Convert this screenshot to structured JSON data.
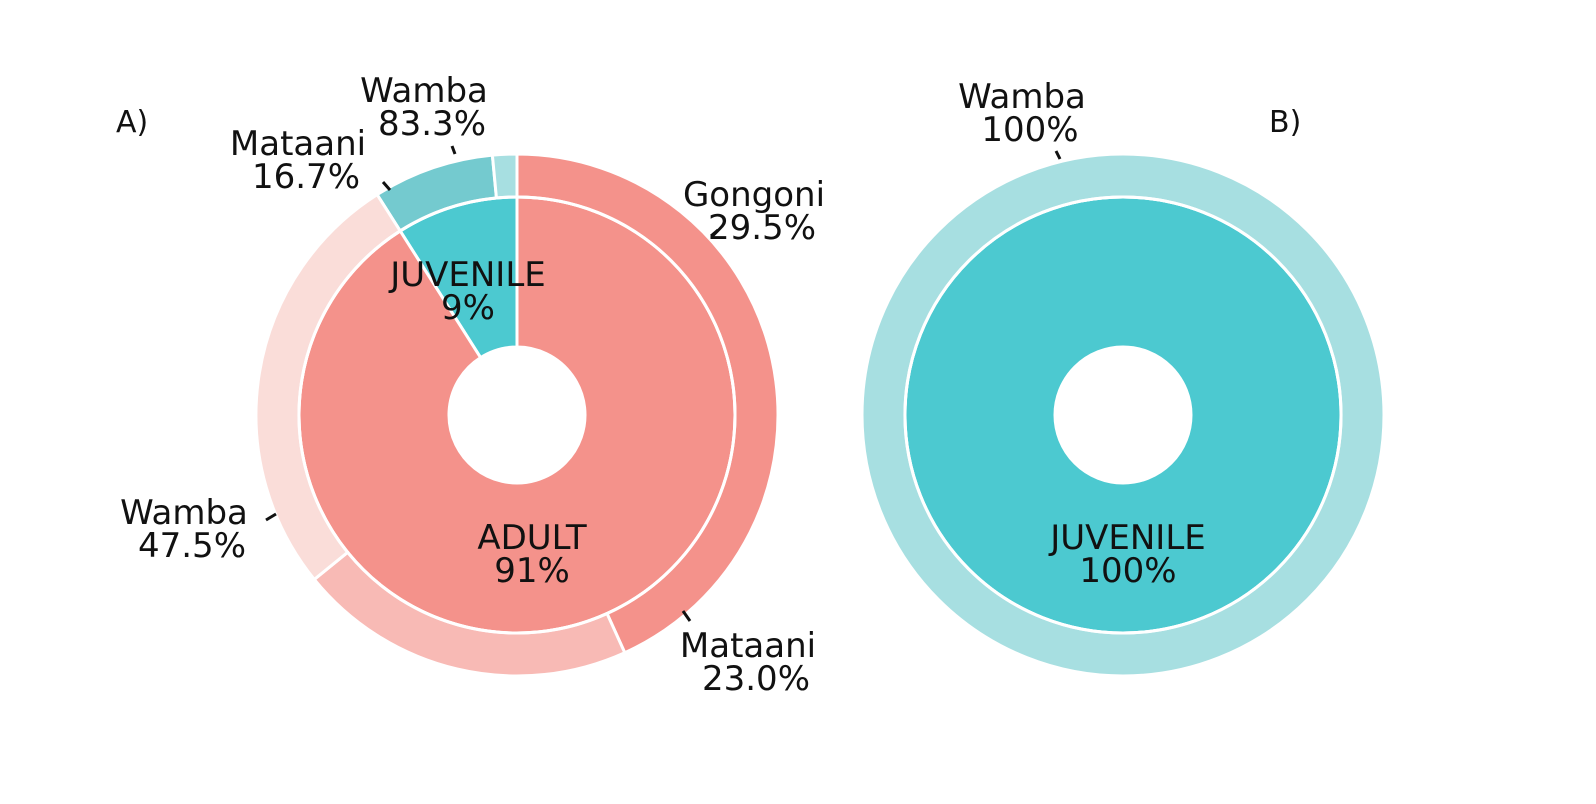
{
  "chart_data": [
    {
      "type": "pie",
      "panel_label": "A)",
      "inner": [
        {
          "label": "JUVENILE",
          "value": 9,
          "value_text": "9%",
          "color": "#4CC9D0"
        },
        {
          "label": "ADULT",
          "value": 91,
          "value_text": "91%",
          "color": "#F4928B"
        }
      ],
      "outer": [
        {
          "label": "Wamba",
          "value": 83.3,
          "value_text": "83.3%",
          "group": "JUVENILE",
          "color": "#74CACF"
        },
        {
          "label": "Mataani",
          "value": 16.7,
          "value_text": "16.7%",
          "group": "JUVENILE",
          "color": "#A7DFE1"
        },
        {
          "label": "Wamba",
          "value": 47.5,
          "value_text": "47.5%",
          "group": "ADULT",
          "color": "#F4928B"
        },
        {
          "label": "Mataani",
          "value": 23.0,
          "value_text": "23.0%",
          "group": "ADULT",
          "color": "#F8BAB5"
        },
        {
          "label": "Gongoni",
          "value": 29.5,
          "value_text": "29.5%",
          "group": "ADULT",
          "color": "#FADDD9"
        }
      ]
    },
    {
      "type": "pie",
      "panel_label": "B)",
      "inner": [
        {
          "label": "JUVENILE",
          "value": 100,
          "value_text": "100%",
          "color": "#4CC9D0"
        }
      ],
      "outer": [
        {
          "label": "Wamba",
          "value": 100,
          "value_text": "100%",
          "group": "JUVENILE",
          "color": "#A7DFE1"
        }
      ]
    }
  ]
}
